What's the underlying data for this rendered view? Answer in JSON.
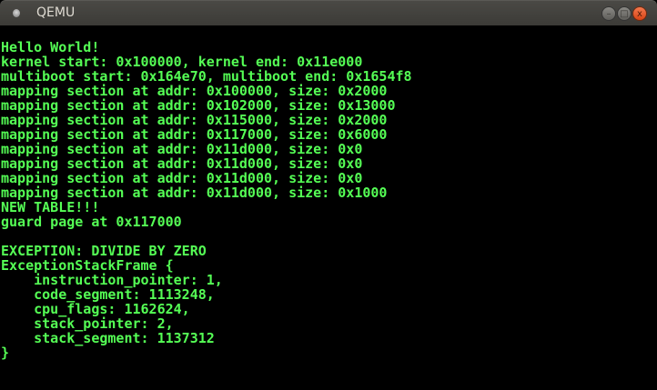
{
  "window": {
    "title": "QEMU",
    "minimize": "–",
    "maximize": "□",
    "close": "x"
  },
  "console": {
    "color": "#55ff55",
    "lines": [
      "Hello World!",
      "kernel start: 0x100000, kernel end: 0x11e000",
      "multiboot start: 0x164e70, multiboot end: 0x1654f8",
      "mapping section at addr: 0x100000, size: 0x2000",
      "mapping section at addr: 0x102000, size: 0x13000",
      "mapping section at addr: 0x115000, size: 0x2000",
      "mapping section at addr: 0x117000, size: 0x6000",
      "mapping section at addr: 0x11d000, size: 0x0",
      "mapping section at addr: 0x11d000, size: 0x0",
      "mapping section at addr: 0x11d000, size: 0x0",
      "mapping section at addr: 0x11d000, size: 0x1000",
      "NEW TABLE!!!",
      "guard page at 0x117000",
      "",
      "EXCEPTION: DIVIDE BY ZERO",
      "ExceptionStackFrame {",
      "    instruction_pointer: 1,",
      "    code_segment: 1113248,",
      "    cpu_flags: 1162624,",
      "    stack_pointer: 2,",
      "    stack_segment: 1137312",
      "}"
    ]
  }
}
